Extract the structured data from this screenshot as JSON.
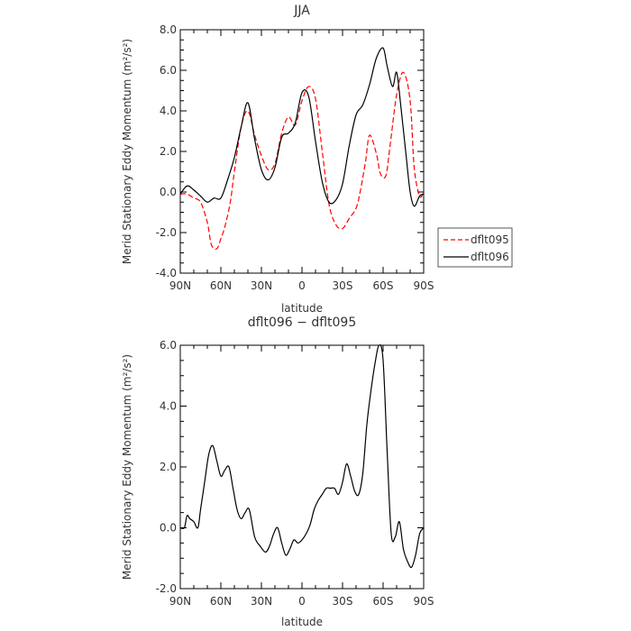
{
  "chart_data": [
    {
      "type": "line",
      "title": "JJA",
      "xlabel": "latitude",
      "ylabel": "Merid Stationary Eddy Momentum (m²/s²)",
      "xlim": [
        90,
        -90
      ],
      "ylim": [
        -4,
        8
      ],
      "xtick_labels": [
        "90N",
        "60N",
        "30N",
        "0",
        "30S",
        "60S",
        "90S"
      ],
      "ytick_labels": [
        "-4.0",
        "-2.0",
        "0.0",
        "2.0",
        "4.0",
        "6.0",
        "8.0"
      ],
      "legend": "right",
      "series": [
        {
          "name": "dflt095",
          "color": "#ff0000",
          "dash": true,
          "x": [
            90,
            85,
            80,
            75,
            70,
            67,
            63,
            60,
            57,
            53,
            50,
            45,
            40,
            35,
            30,
            25,
            20,
            15,
            10,
            5,
            0,
            -5,
            -10,
            -15,
            -20,
            -25,
            -30,
            -35,
            -40,
            -43,
            -47,
            -50,
            -55,
            -58,
            -62,
            -65,
            -70,
            -75,
            -80,
            -83,
            -87,
            -90
          ],
          "y": [
            -0.1,
            -0.1,
            -0.3,
            -0.5,
            -1.5,
            -2.6,
            -2.8,
            -2.3,
            -1.7,
            -0.5,
            1.0,
            3.2,
            4.0,
            2.8,
            1.8,
            1.1,
            1.4,
            2.9,
            3.7,
            3.3,
            4.5,
            5.2,
            4.6,
            2.0,
            -0.6,
            -1.6,
            -1.8,
            -1.3,
            -0.8,
            0.0,
            1.5,
            2.8,
            1.9,
            0.9,
            0.8,
            2.2,
            4.8,
            5.9,
            4.5,
            1.2,
            -0.2,
            0.0
          ]
        },
        {
          "name": "dflt096",
          "color": "#000000",
          "dash": false,
          "x": [
            90,
            85,
            80,
            75,
            70,
            65,
            60,
            55,
            50,
            45,
            40,
            35,
            30,
            25,
            20,
            15,
            10,
            5,
            0,
            -5,
            -10,
            -15,
            -20,
            -25,
            -30,
            -35,
            -40,
            -45,
            -50,
            -55,
            -60,
            -63,
            -67,
            -70,
            -73,
            -77,
            -80,
            -83,
            -87,
            -90
          ],
          "y": [
            -0.1,
            0.3,
            0.1,
            -0.2,
            -0.5,
            -0.3,
            -0.3,
            0.6,
            1.7,
            3.2,
            4.4,
            2.6,
            1.1,
            0.6,
            1.2,
            2.7,
            2.9,
            3.4,
            4.9,
            4.7,
            2.5,
            0.5,
            -0.5,
            -0.4,
            0.4,
            2.3,
            3.8,
            4.3,
            5.3,
            6.6,
            7.1,
            6.2,
            5.2,
            5.9,
            4.3,
            1.8,
            0.0,
            -0.7,
            -0.2,
            -0.1
          ]
        }
      ]
    },
    {
      "type": "line",
      "title": "dflt096 − dflt095",
      "xlabel": "latitude",
      "ylabel": "Merid Stationary Eddy Momentum (m²/s²)",
      "xlim": [
        90,
        -90
      ],
      "ylim": [
        -2,
        6
      ],
      "xtick_labels": [
        "90N",
        "60N",
        "30N",
        "0",
        "30S",
        "60S",
        "90S"
      ],
      "ytick_labels": [
        "-2.0",
        "0.0",
        "2.0",
        "4.0",
        "6.0"
      ],
      "series": [
        {
          "color": "#000000",
          "dash": false,
          "x": [
            90,
            87,
            85,
            83,
            80,
            77,
            75,
            72,
            69,
            66,
            63,
            60,
            57,
            54,
            51,
            48,
            45,
            42,
            39,
            35,
            31,
            27,
            24,
            21,
            18,
            15,
            12,
            9,
            6,
            3,
            0,
            -3,
            -6,
            -9,
            -12,
            -15,
            -18,
            -21,
            -24,
            -27,
            -30,
            -33,
            -36,
            -39,
            -42,
            -45,
            -48,
            -51,
            -54,
            -57,
            -60,
            -63,
            -66,
            -69,
            -72,
            -75,
            -78,
            -81,
            -84,
            -87,
            -90
          ],
          "y": [
            0.0,
            0.0,
            0.4,
            0.3,
            0.2,
            0.0,
            0.6,
            1.5,
            2.4,
            2.7,
            2.2,
            1.7,
            1.9,
            2.0,
            1.3,
            0.6,
            0.3,
            0.5,
            0.6,
            -0.3,
            -0.6,
            -0.8,
            -0.6,
            -0.2,
            0.0,
            -0.5,
            -0.9,
            -0.7,
            -0.4,
            -0.5,
            -0.4,
            -0.2,
            0.1,
            0.6,
            0.9,
            1.1,
            1.3,
            1.3,
            1.3,
            1.1,
            1.5,
            2.1,
            1.7,
            1.2,
            1.1,
            1.8,
            3.4,
            4.5,
            5.4,
            6.0,
            5.5,
            2.5,
            -0.2,
            -0.3,
            0.2,
            -0.7,
            -1.1,
            -1.3,
            -0.9,
            -0.2,
            0.0
          ]
        }
      ]
    }
  ]
}
